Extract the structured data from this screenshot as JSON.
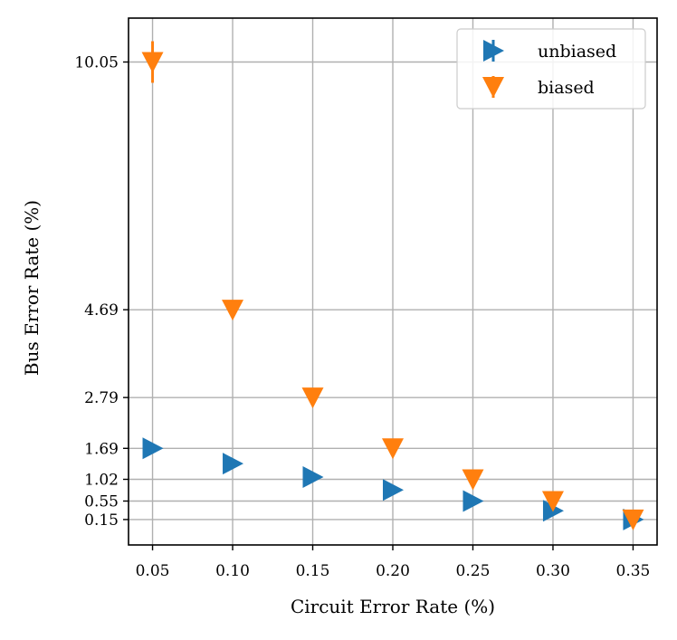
{
  "chart_data": {
    "type": "scatter",
    "title": "",
    "xlabel": "Circuit Error Rate (%)",
    "ylabel": "Bus Error Rate (%)",
    "xlim": [
      0.035,
      0.365
    ],
    "ylim": [
      -0.4,
      11.0
    ],
    "xticks": [
      0.05,
      0.1,
      0.15,
      0.2,
      0.25,
      0.3,
      0.35
    ],
    "xtick_labels": [
      "0.05",
      "0.10",
      "0.15",
      "0.20",
      "0.25",
      "0.30",
      "0.35"
    ],
    "yticks": [
      0.15,
      0.55,
      1.02,
      1.69,
      2.79,
      4.69,
      10.05
    ],
    "ytick_labels": [
      "0.15",
      "0.55",
      "1.02",
      "1.69",
      "2.79",
      "4.69",
      "10.05"
    ],
    "grid": true,
    "legend_position": "top-right",
    "series": [
      {
        "name": "unbiased",
        "marker": "triangle-right",
        "color": "#1f77b4",
        "x": [
          0.05,
          0.1,
          0.15,
          0.2,
          0.25,
          0.3,
          0.35
        ],
        "y": [
          1.69,
          1.36,
          1.07,
          0.79,
          0.55,
          0.34,
          0.15
        ],
        "yerr": [
          0,
          0,
          0,
          0,
          0,
          0,
          0
        ]
      },
      {
        "name": "biased",
        "marker": "triangle-down",
        "color": "#ff7f0e",
        "x": [
          0.05,
          0.1,
          0.15,
          0.2,
          0.25,
          0.3,
          0.35
        ],
        "y": [
          10.05,
          4.69,
          2.79,
          1.69,
          1.02,
          0.55,
          0.15
        ],
        "yerr": [
          0.45,
          0,
          0,
          0,
          0,
          0,
          0
        ]
      }
    ]
  }
}
